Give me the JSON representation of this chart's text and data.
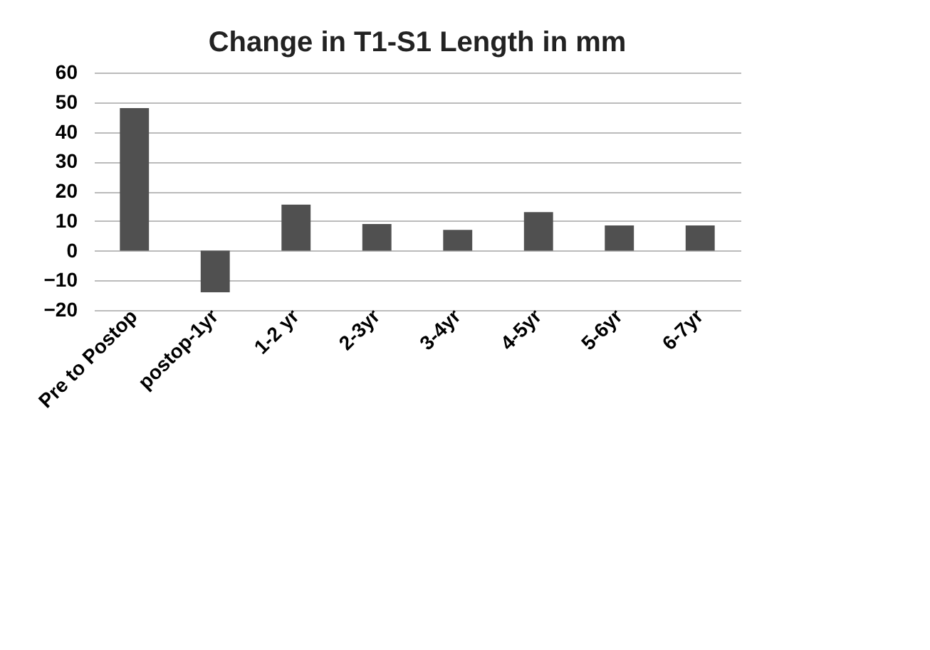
{
  "chart_data": {
    "type": "bar",
    "title": "Change in T1-S1 Length in mm",
    "categories": [
      "Pre to Postop",
      "postop-1yr",
      "1-2 yr",
      "2-3yr",
      "3-4yr",
      "4-5yr",
      "5-6yr",
      "6-7yr"
    ],
    "values": [
      48,
      -14,
      15.5,
      9,
      7,
      13,
      8.5,
      8.5
    ],
    "color": "#505050",
    "ylim": [
      -20,
      60
    ],
    "yticks": [
      -20,
      -10,
      0,
      10,
      20,
      30,
      40,
      50,
      60
    ],
    "grid": "y"
  }
}
